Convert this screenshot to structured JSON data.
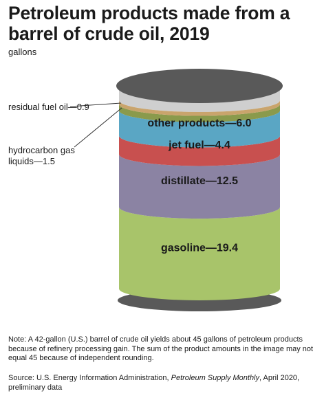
{
  "title": "Petroleum products made from a barrel of crude oil, 2019",
  "units": "gallons",
  "chart_data": {
    "type": "bar",
    "stacked": true,
    "orientation": "vertical",
    "unit": "gallons",
    "categories": [
      "gasoline",
      "distillate",
      "jet fuel",
      "other products",
      "hydrocarbon gas liquids",
      "residual fuel oil"
    ],
    "values": [
      19.4,
      12.5,
      4.4,
      6.0,
      1.5,
      0.9
    ],
    "segments": [
      {
        "name": "gasoline",
        "value": 19.4,
        "color": "#a8c46a",
        "label": "gasoline—19.4",
        "labeled_inside": true
      },
      {
        "name": "distillate",
        "value": 12.5,
        "color": "#8b83a3",
        "label": "distillate—12.5",
        "labeled_inside": true
      },
      {
        "name": "jet fuel",
        "value": 4.4,
        "color": "#c8504f",
        "label": "jet fuel—4.4",
        "labeled_inside": true
      },
      {
        "name": "other products",
        "value": 6.0,
        "color": "#5aa6c4",
        "label": "other products—6.0",
        "labeled_inside": true
      },
      {
        "name": "hydrocarbon gas liquids",
        "value": 1.5,
        "color": "#8a9a4c",
        "label": "hydrocarbon gas liquids—1.5",
        "labeled_inside": false
      },
      {
        "name": "residual fuel oil",
        "value": 0.9,
        "color": "#c9a46c",
        "label": "residual fuel oil—0.9",
        "labeled_inside": false
      }
    ],
    "callouts": [
      {
        "text": "residual fuel oil—0.9"
      },
      {
        "text": "hydrocarbon gas liquids—1.5"
      }
    ],
    "barrel_colors": {
      "lid": "#595959",
      "empty_top": "#cfcfcf"
    }
  },
  "note": "Note: A 42-gallon (U.S.) barrel of crude oil yields about 45 gallons of petroleum products because of refinery processing gain. The sum of the product amounts in the image may not equal 45 because of independent rounding.",
  "source": {
    "prefix": "Source: U.S. Energy Information Administration, ",
    "publication": "Petroleum Supply Monthly",
    "suffix": ", April 2020, preliminary data"
  }
}
